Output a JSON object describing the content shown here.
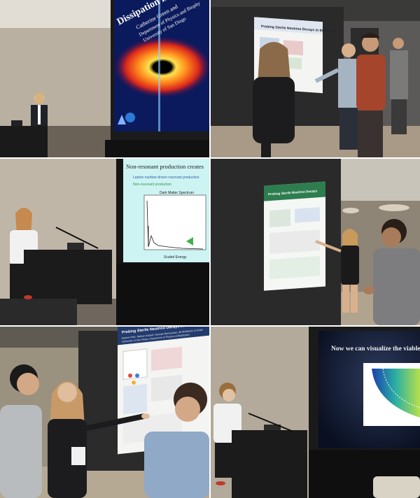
{
  "panels": [
    {
      "slide_title": "Dissipation in Black",
      "slide_authors": "Catherine Green and",
      "slide_dept": "Department of Physics and Biophy",
      "slide_univ": "University of San Diego"
    },
    {
      "poster_title": "Probing Sterile Neutrino Decays in the Early"
    },
    {
      "slide_title": "Non-resonant production creates",
      "bullet_1": "Lepton number-driven resonant production",
      "bullet_2": "Non-resonant production",
      "chart_title": "Dark Matter Spectrum",
      "xlabel": "Scaled Energy"
    },
    {
      "poster_title": "Probing Sterile Neutrino Decays"
    },
    {
      "poster_title": "Probing Sterile Neutrino Decays in the Early U",
      "poster_authors": "Rachel Ortiz, Nathan Anatall, Hannah Rasmussen, Ali McMichel, & Chad",
      "poster_affil": "University of San Diego, Department of Physics & Biophysics"
    },
    {
      "slide_title": "Now we can visualize the viable models"
    }
  ],
  "colors": {
    "background": "#ffffff",
    "slide_blue": "#1a2a6c",
    "poster_green": "#2e7d4f"
  }
}
